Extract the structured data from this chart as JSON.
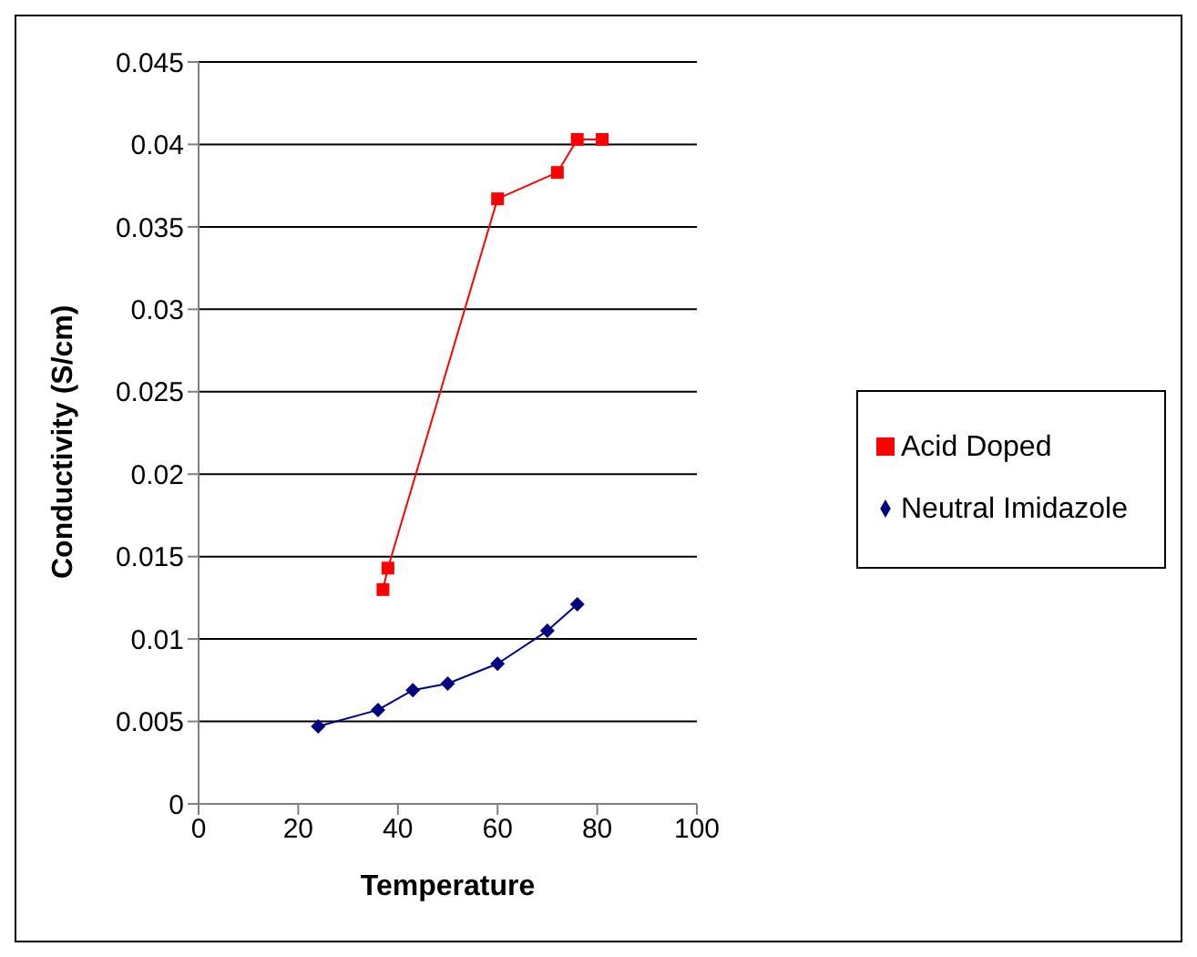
{
  "chart_data": {
    "type": "line",
    "xlabel": "Temperature",
    "ylabel": "Conductivity (S/cm)",
    "xlim": [
      0,
      100
    ],
    "xticks": [
      0,
      20,
      40,
      60,
      80,
      100
    ],
    "ylim": [
      0,
      0.045
    ],
    "yticks": [
      0,
      0.005,
      0.01,
      0.015,
      0.02,
      0.025,
      0.03,
      0.035,
      0.04,
      0.045
    ],
    "grid": "y",
    "legend": "right",
    "series": [
      {
        "name": "Neutral Imidazole",
        "color": "#000080",
        "marker": "diamond",
        "x": [
          24,
          36,
          43,
          50,
          60,
          70,
          76
        ],
        "values": [
          0.0047,
          0.0057,
          0.0069,
          0.0073,
          0.0085,
          0.0105,
          0.0121
        ]
      },
      {
        "name": "Acid Doped",
        "color": "#ff0000",
        "marker": "square",
        "x": [
          37,
          38,
          60,
          72,
          76,
          81
        ],
        "values": [
          0.013,
          0.0143,
          0.0367,
          0.0383,
          0.0403,
          0.0403
        ]
      }
    ]
  }
}
